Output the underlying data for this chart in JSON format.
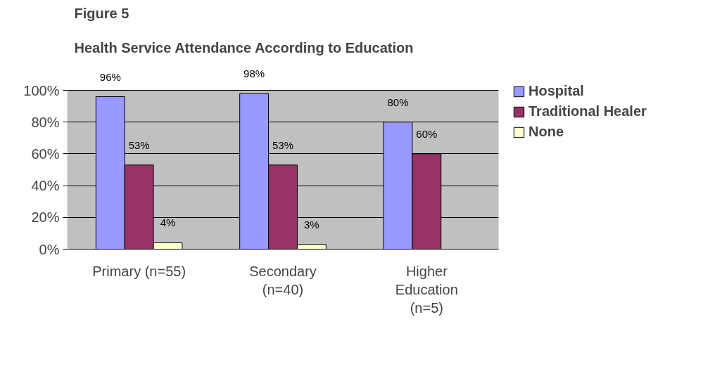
{
  "chart_data": {
    "type": "bar",
    "title": "Figure 5",
    "subtitle": "Health Service Attendance According to Education",
    "categories": [
      "Primary (n=55)",
      "Secondary\n(n=40)",
      "Higher\nEducation\n(n=5)"
    ],
    "series": [
      {
        "name": "Hospital",
        "color": "#9999ff",
        "values": [
          96,
          98,
          80
        ],
        "value_labels": [
          "96%",
          "98%",
          "80%"
        ]
      },
      {
        "name": "Traditional Healer",
        "color": "#993366",
        "values": [
          53,
          53,
          60
        ],
        "value_labels": [
          "53%",
          "53%",
          "60%"
        ]
      },
      {
        "name": "None",
        "color": "#ffffcc",
        "values": [
          4,
          3,
          null
        ],
        "value_labels": [
          "4%",
          "3%",
          null
        ]
      }
    ],
    "ylim": [
      0,
      100
    ],
    "yticks": [
      {
        "value": 0,
        "label": "0%"
      },
      {
        "value": 20,
        "label": "20%"
      },
      {
        "value": 40,
        "label": "40%"
      },
      {
        "value": 60,
        "label": "60%"
      },
      {
        "value": 80,
        "label": "80%"
      },
      {
        "value": 100,
        "label": "100%"
      }
    ],
    "grid": "y",
    "legend": "right"
  }
}
